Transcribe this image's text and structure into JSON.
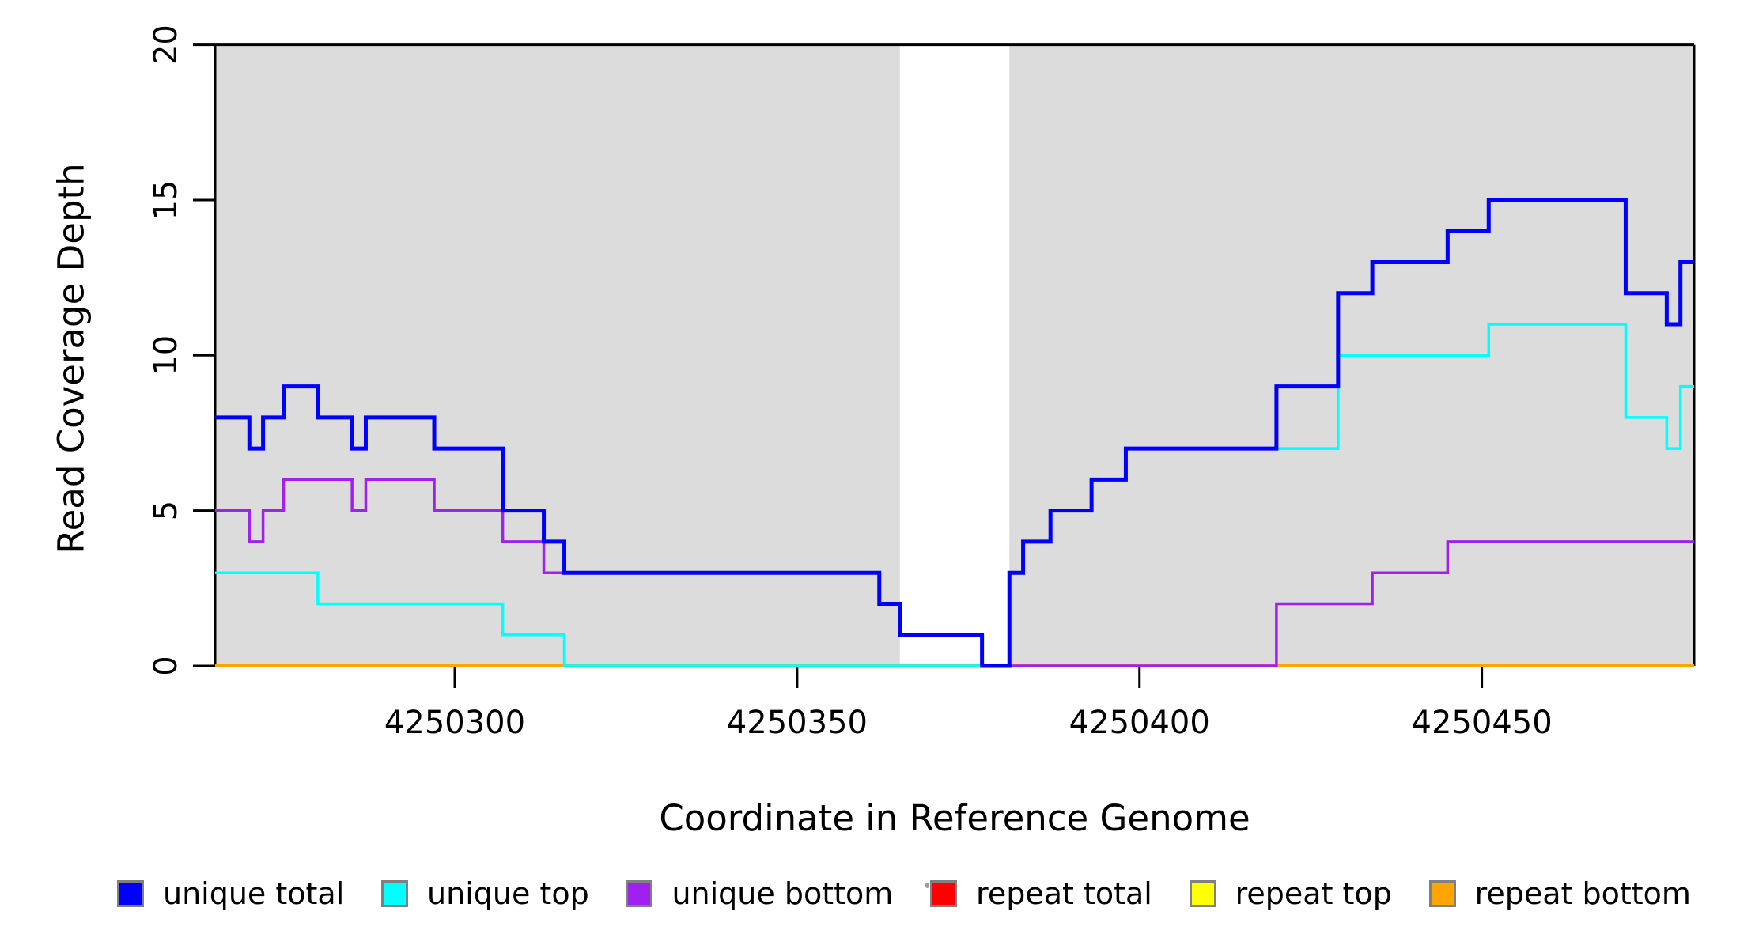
{
  "figure": {
    "xlabel": "Coordinate in Reference Genome",
    "ylabel": "Read Coverage Depth"
  },
  "chart_data": {
    "type": "line",
    "subtype": "step",
    "title": "",
    "xlabel": "Coordinate in Reference Genome",
    "ylabel": "Read Coverage Depth",
    "xlim": [
      4250265,
      4250481
    ],
    "ylim": [
      0,
      20
    ],
    "x_ticks": [
      4250300,
      4250350,
      4250400,
      4250450
    ],
    "y_ticks": [
      0,
      5,
      10,
      15,
      20
    ],
    "grid": false,
    "legend_position": "bottom",
    "background_regions": {
      "color": "#DCDCDC",
      "ranges": [
        [
          4250265,
          4250365
        ],
        [
          4250381,
          4250481
        ]
      ]
    },
    "series": [
      {
        "name": "repeat total",
        "color": "#FF0000",
        "width": 2.5,
        "points": [
          [
            4250265,
            0
          ],
          [
            4250481,
            0
          ]
        ]
      },
      {
        "name": "repeat top",
        "color": "#FFFF00",
        "width": 2.5,
        "points": [
          [
            4250265,
            0
          ],
          [
            4250481,
            0
          ]
        ]
      },
      {
        "name": "repeat bottom",
        "color": "#FFA500",
        "width": 4,
        "points": [
          [
            4250265,
            0
          ],
          [
            4250481,
            0
          ]
        ]
      },
      {
        "name": "unique bottom",
        "color": "#A020F0",
        "width": 3.5,
        "points": [
          [
            4250265,
            5
          ],
          [
            4250270,
            4
          ],
          [
            4250272,
            5
          ],
          [
            4250275,
            6
          ],
          [
            4250285,
            5
          ],
          [
            4250287,
            6
          ],
          [
            4250297,
            5
          ],
          [
            4250307,
            4
          ],
          [
            4250313,
            3
          ],
          [
            4250362,
            2
          ],
          [
            4250365,
            1
          ],
          [
            4250377,
            0
          ],
          [
            4250420,
            2
          ],
          [
            4250434,
            3
          ],
          [
            4250445,
            4
          ],
          [
            4250481,
            4
          ]
        ]
      },
      {
        "name": "unique top",
        "color": "#00FFFF",
        "width": 3.5,
        "points": [
          [
            4250265,
            3
          ],
          [
            4250280,
            2
          ],
          [
            4250307,
            1
          ],
          [
            4250316,
            0
          ],
          [
            4250381,
            3
          ],
          [
            4250383,
            4
          ],
          [
            4250387,
            5
          ],
          [
            4250393,
            6
          ],
          [
            4250398,
            7
          ],
          [
            4250429,
            10
          ],
          [
            4250451,
            11
          ],
          [
            4250471,
            8
          ],
          [
            4250477,
            7
          ],
          [
            4250479,
            9
          ],
          [
            4250481,
            9
          ]
        ]
      },
      {
        "name": "unique total",
        "color": "#0000FF",
        "width": 5,
        "points": [
          [
            4250265,
            8
          ],
          [
            4250270,
            7
          ],
          [
            4250272,
            8
          ],
          [
            4250275,
            9
          ],
          [
            4250280,
            8
          ],
          [
            4250285,
            7
          ],
          [
            4250287,
            8
          ],
          [
            4250297,
            7
          ],
          [
            4250307,
            5
          ],
          [
            4250313,
            4
          ],
          [
            4250316,
            3
          ],
          [
            4250362,
            2
          ],
          [
            4250365,
            1
          ],
          [
            4250377,
            0
          ],
          [
            4250381,
            3
          ],
          [
            4250383,
            4
          ],
          [
            4250387,
            5
          ],
          [
            4250393,
            6
          ],
          [
            4250398,
            7
          ],
          [
            4250420,
            9
          ],
          [
            4250429,
            12
          ],
          [
            4250434,
            13
          ],
          [
            4250445,
            14
          ],
          [
            4250451,
            15
          ],
          [
            4250471,
            12
          ],
          [
            4250477,
            11
          ],
          [
            4250479,
            13
          ],
          [
            4250481,
            13
          ]
        ]
      }
    ],
    "legend": [
      {
        "label": "unique total",
        "color": "#0000FF"
      },
      {
        "label": "unique top",
        "color": "#00FFFF"
      },
      {
        "label": "unique bottom",
        "color": "#A020F0"
      },
      {
        "label": "repeat total",
        "color": "#FF0000"
      },
      {
        "label": "repeat top",
        "color": "#FFFF00"
      },
      {
        "label": "repeat bottom",
        "color": "#FFA500"
      }
    ]
  }
}
